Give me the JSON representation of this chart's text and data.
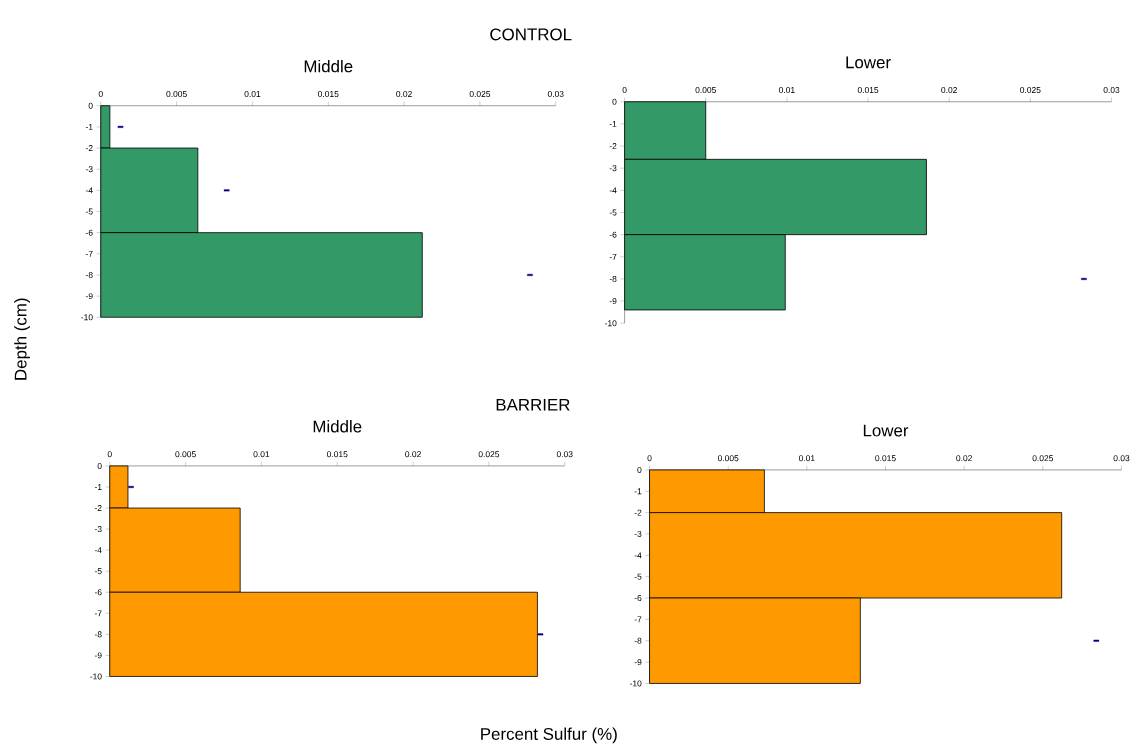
{
  "chart_data": [
    {
      "type": "histogram",
      "orientation": "horizontal",
      "title": "Middle",
      "ylabel": "Depth (cm)",
      "annotations": [
        "CONTROL"
      ],
      "bins": [
        0,
        -2,
        -6,
        -10
      ],
      "xlim": [
        0,
        0.03
      ],
      "xticks": [
        0,
        0.005,
        0.01,
        0.015,
        0.02,
        0.025,
        0.03
      ],
      "ylim": [
        -10,
        0
      ],
      "yticks": [
        0,
        -1,
        -2,
        -3,
        -4,
        -5,
        -6,
        -7,
        -8,
        -9,
        -10
      ],
      "series": [
        {
          "color": "#339966",
          "values": [
            0.0006,
            0.0064,
            0.0212
          ]
        },
        {
          "type": "scatter",
          "color": "#000080",
          "x": [
            -1,
            -4,
            -8
          ],
          "values": [
            0.0013,
            0.0083,
            0.0283
          ]
        }
      ]
    },
    {
      "type": "histogram",
      "orientation": "horizontal",
      "title": "Lower",
      "bins": [
        0,
        -2.6,
        -6,
        -9.4
      ],
      "xlim": [
        0,
        0.03
      ],
      "xticks": [
        0,
        0.005,
        0.01,
        0.015,
        0.02,
        0.025,
        0.03
      ],
      "ylim": [
        -10,
        0
      ],
      "yticks": [
        0,
        -1,
        -2,
        -3,
        -4,
        -5,
        -6,
        -7,
        -8,
        -9,
        -10
      ],
      "series": [
        {
          "color": "#339966",
          "values": [
            0.005,
            0.0186,
            0.0099
          ]
        },
        {
          "type": "scatter",
          "color": "#000080",
          "x": [
            -8
          ],
          "values": [
            0.0283
          ]
        }
      ]
    },
    {
      "type": "histogram",
      "orientation": "horizontal",
      "title": "Middle",
      "xlabel": "Percent Sulfur (%)",
      "annotations": [
        "BARRIER"
      ],
      "bins": [
        0,
        -2,
        -6,
        -10
      ],
      "xlim": [
        0,
        0.03
      ],
      "xticks": [
        0,
        0.005,
        0.01,
        0.015,
        0.02,
        0.025,
        0.03
      ],
      "ylim": [
        -10,
        0
      ],
      "yticks": [
        0,
        -1,
        -2,
        -3,
        -4,
        -5,
        -6,
        -7,
        -8,
        -9,
        -10
      ],
      "series": [
        {
          "color": "#ff9900",
          "values": [
            0.0012,
            0.0086,
            0.0282
          ]
        },
        {
          "type": "scatter",
          "color": "#000080",
          "x": [
            -1,
            -8
          ],
          "values": [
            0.0014,
            0.0284
          ]
        }
      ]
    },
    {
      "type": "histogram",
      "orientation": "horizontal",
      "title": "Lower",
      "bins": [
        0,
        -2,
        -6,
        -10
      ],
      "xlim": [
        0,
        0.03
      ],
      "xticks": [
        0,
        0.005,
        0.01,
        0.015,
        0.02,
        0.025,
        0.03
      ],
      "ylim": [
        -10,
        0
      ],
      "yticks": [
        0,
        -1,
        -2,
        -3,
        -4,
        -5,
        -6,
        -7,
        -8,
        -9,
        -10
      ],
      "series": [
        {
          "color": "#ff9900",
          "values": [
            0.0073,
            0.0262,
            0.0134
          ]
        },
        {
          "type": "scatter",
          "color": "#000080",
          "x": [
            -8
          ],
          "values": [
            0.0284
          ]
        }
      ]
    }
  ]
}
